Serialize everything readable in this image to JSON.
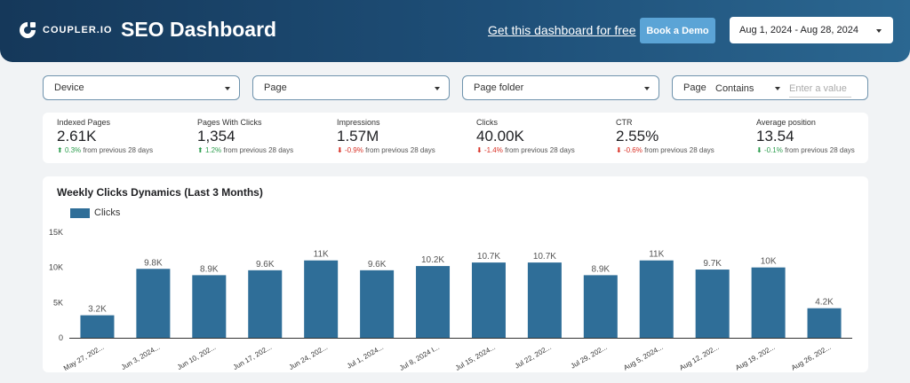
{
  "header": {
    "logo_text": "COUPLER.IO",
    "title": "SEO Dashboard",
    "free_link": "Get this dashboard for free",
    "demo_button": "Book a Demo",
    "date_range": "Aug 1, 2024 - Aug 28, 2024"
  },
  "filters": {
    "device": "Device",
    "page": "Page",
    "page_folder": "Page folder",
    "page_search": {
      "field": "Page",
      "operator": "Contains",
      "placeholder": "Enter a value"
    }
  },
  "kpis": [
    {
      "label": "Indexed Pages",
      "value": "2.61K",
      "arrow": "⬆",
      "direction": "up",
      "delta": "0.3%",
      "suffix": " from previous 28 days"
    },
    {
      "label": "Pages With Clicks",
      "value": "1,354",
      "arrow": "⬆",
      "direction": "up",
      "delta": "1.2%",
      "suffix": " from previous 28 days"
    },
    {
      "label": "Impressions",
      "value": "1.57M",
      "arrow": "⬇",
      "direction": "down",
      "delta": "-0.9%",
      "suffix": " from previous 28 days"
    },
    {
      "label": "Clicks",
      "value": "40.00K",
      "arrow": "⬇",
      "direction": "down",
      "delta": "-1.4%",
      "suffix": " from previous 28 days"
    },
    {
      "label": "CTR",
      "value": "2.55%",
      "arrow": "⬇",
      "direction": "down",
      "delta": "-0.6%",
      "suffix": " from previous 28 days"
    },
    {
      "label": "Average position",
      "value": "13.54",
      "arrow": "⬇",
      "direction": "up",
      "delta": "-0.1%",
      "suffix": " from previous 28 days"
    }
  ],
  "chart_title": "Weekly Clicks Dynamics (Last 3 Months)",
  "colors": {
    "bar": "#2f6e98",
    "up": "#2e9e4f",
    "down": "#d93025"
  },
  "chart_data": {
    "type": "bar",
    "categories": [
      "May 27, 202...",
      "Jun 3, 2024...",
      "Jun 10, 202...",
      "Jun 17, 202...",
      "Jun 24, 202...",
      "Jul 1, 2024...",
      "Jul 8, 2024 I...",
      "Jul 15, 2024...",
      "Jul 22, 202...",
      "Jul 29, 202...",
      "Aug 5, 2024...",
      "Aug 12, 202...",
      "Aug 19, 202...",
      "Aug 26, 202..."
    ],
    "series": [
      {
        "name": "Clicks",
        "values": [
          3200,
          9800,
          8900,
          9600,
          11000,
          9600,
          10200,
          10700,
          10700,
          8900,
          11000,
          9700,
          10000,
          4200
        ]
      }
    ],
    "data_labels": [
      "3.2K",
      "9.8K",
      "8.9K",
      "9.6K",
      "11K",
      "9.6K",
      "10.2K",
      "10.7K",
      "10.7K",
      "8.9K",
      "11K",
      "9.7K",
      "10K",
      "4.2K"
    ],
    "y_ticks": [
      0,
      5000,
      10000,
      15000
    ],
    "y_tick_labels": [
      "0",
      "5K",
      "10K",
      "15K"
    ],
    "ylim": [
      0,
      15000
    ],
    "legend": "top-left",
    "grid": false
  }
}
